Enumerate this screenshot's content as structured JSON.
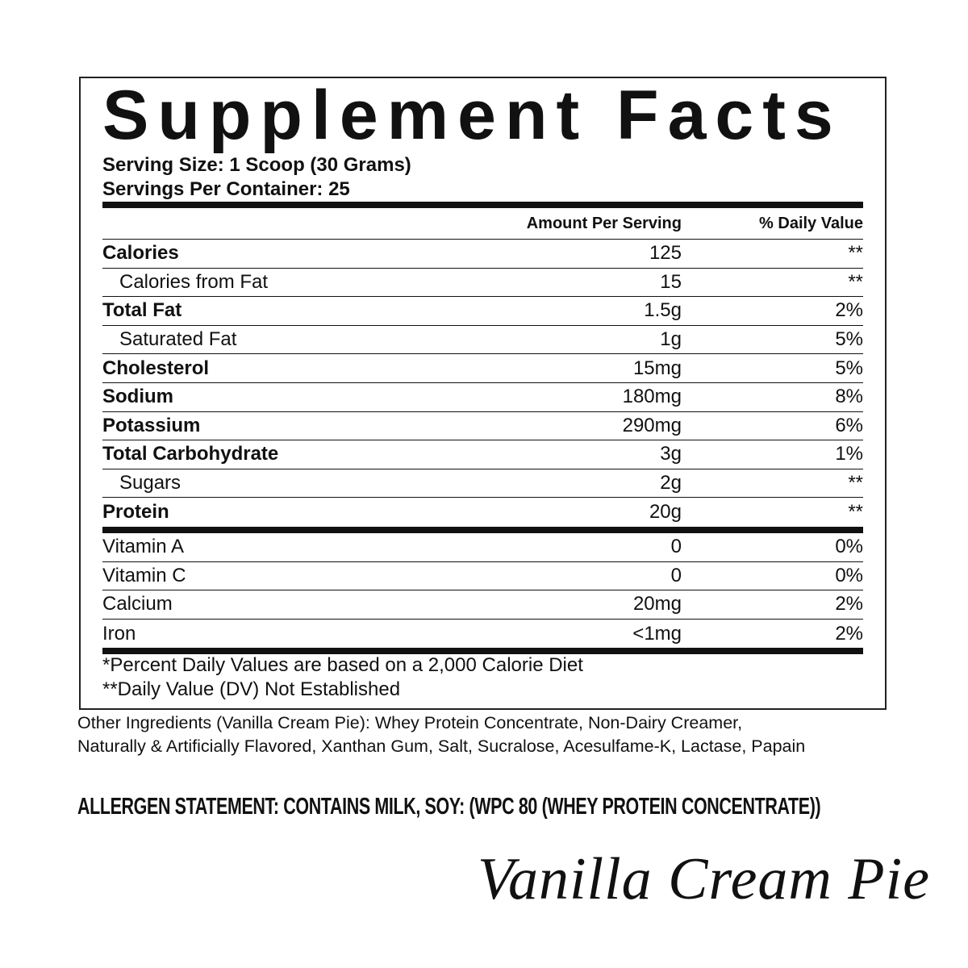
{
  "header": {
    "title": "Supplement Facts",
    "serving_size": "Serving Size: 1 Scoop (30 Grams)",
    "servings_per_container": "Servings Per Container: 25"
  },
  "table": {
    "columns": [
      "Amount Per Serving",
      "% Daily Value"
    ],
    "nutrients": [
      [
        "Calories",
        "125",
        "**"
      ],
      [
        "Calories from Fat",
        "15",
        "**"
      ],
      [
        "Total Fat",
        "1.5g",
        "2%"
      ],
      [
        "Saturated Fat",
        "1g",
        "5%"
      ],
      [
        "Cholesterol",
        "15mg",
        "5%"
      ],
      [
        "Sodium",
        "180mg",
        "8%"
      ],
      [
        "Potassium",
        "290mg",
        "6%"
      ],
      [
        "Total Carbohydrate",
        "3g",
        "1%"
      ],
      [
        "Sugars",
        "2g",
        "**"
      ],
      [
        "Protein",
        "20g",
        "**"
      ]
    ],
    "vitamins": [
      [
        "Vitamin A",
        "0",
        "0%"
      ],
      [
        "Vitamin C",
        "0",
        "0%"
      ],
      [
        "Calcium",
        "20mg",
        "2%"
      ],
      [
        "Iron",
        "<1mg",
        "2%"
      ]
    ]
  },
  "footnotes": [
    "*Percent Daily Values are based on a 2,000 Calorie Diet",
    "**Daily Value (DV) Not Established"
  ],
  "other_ingredients": [
    "Other Ingredients (Vanilla Cream Pie): Whey Protein Concentrate, Non-Dairy Creamer,",
    "Naturally & Artificially Flavored, Xanthan Gum, Salt, Sucralose, Acesulfame-K, Lactase, Papain"
  ],
  "allergen_statement": "ALLERGEN STATEMENT: CONTAINS MILK, SOY: (WPC 80 (WHEY PROTEIN CONCENTRATE))",
  "flavor": "Vanilla Cream Pie"
}
